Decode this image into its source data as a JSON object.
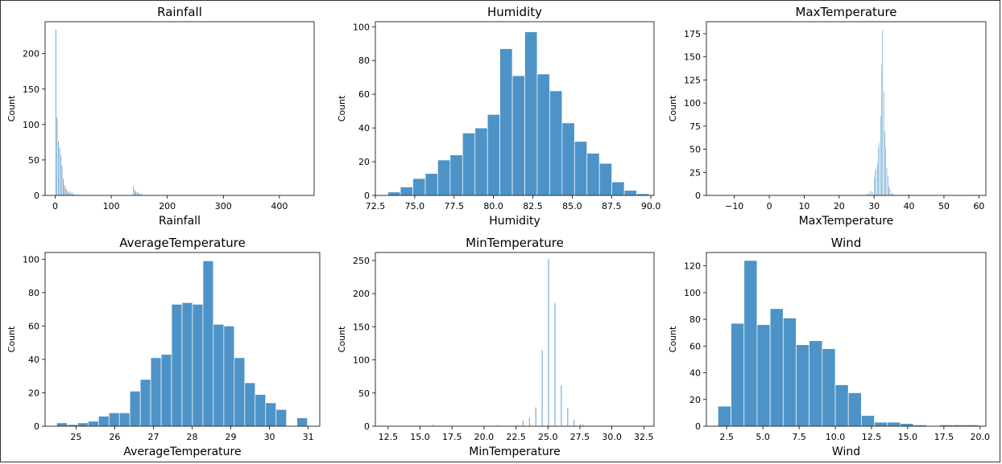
{
  "chart_data": [
    {
      "type": "bar",
      "title": "Rainfall",
      "xlabel": "Rainfall",
      "ylabel": "Count",
      "xlim": [
        -18,
        462
      ],
      "ylim": [
        0,
        245
      ],
      "xticks": [
        0,
        100,
        200,
        300,
        400
      ],
      "yticks": [
        0,
        50,
        100,
        150,
        200
      ],
      "bin_width": 2.2,
      "bins": [
        [
          0,
          234
        ],
        [
          2.2,
          110
        ],
        [
          4.4,
          77
        ],
        [
          6.6,
          68
        ],
        [
          8.8,
          57
        ],
        [
          11,
          42
        ],
        [
          13.2,
          24
        ],
        [
          15.4,
          15
        ],
        [
          17.6,
          11
        ],
        [
          19.8,
          8
        ],
        [
          22,
          4
        ],
        [
          24.2,
          6
        ],
        [
          26.4,
          3
        ],
        [
          28.6,
          5
        ],
        [
          30.8,
          2
        ],
        [
          33,
          2
        ],
        [
          35.2,
          1
        ],
        [
          37.4,
          1
        ],
        [
          39.6,
          2
        ],
        [
          44,
          1
        ],
        [
          48.4,
          1
        ],
        [
          70.4,
          1
        ],
        [
          96.8,
          1
        ],
        [
          101.2,
          1
        ],
        [
          107.8,
          1
        ],
        [
          116.6,
          1
        ],
        [
          132,
          1
        ],
        [
          138.6,
          13
        ],
        [
          140.8,
          8
        ],
        [
          143,
          6
        ],
        [
          145.2,
          5
        ],
        [
          147.4,
          4
        ],
        [
          149.6,
          3
        ],
        [
          151.8,
          2
        ],
        [
          154,
          2
        ],
        [
          158.4,
          1
        ],
        [
          162.8,
          1
        ],
        [
          440,
          1
        ]
      ]
    },
    {
      "type": "bar",
      "title": "Humidity",
      "xlabel": "Humidity",
      "ylabel": "Count",
      "xlim": [
        72.5,
        90.2
      ],
      "ylim": [
        0,
        103
      ],
      "xticks": [
        72.5,
        75.0,
        77.5,
        80.0,
        82.5,
        85.0,
        87.5,
        90.0
      ],
      "yticks": [
        0,
        20,
        40,
        60,
        80,
        100
      ],
      "bin_width": 0.79,
      "bins": [
        [
          73.3,
          2
        ],
        [
          74.09,
          5
        ],
        [
          74.88,
          10
        ],
        [
          75.67,
          13
        ],
        [
          76.46,
          21
        ],
        [
          77.25,
          24
        ],
        [
          78.04,
          37
        ],
        [
          78.83,
          40
        ],
        [
          79.62,
          48
        ],
        [
          80.41,
          87
        ],
        [
          81.2,
          71
        ],
        [
          81.99,
          97
        ],
        [
          82.78,
          72
        ],
        [
          83.57,
          62
        ],
        [
          84.36,
          43
        ],
        [
          85.15,
          32
        ],
        [
          85.94,
          25
        ],
        [
          86.73,
          19
        ],
        [
          87.52,
          8
        ],
        [
          88.31,
          3
        ],
        [
          89.1,
          1
        ]
      ]
    },
    {
      "type": "bar",
      "title": "MaxTemperature",
      "xlabel": "MaxTemperature",
      "ylabel": "Count",
      "xlim": [
        -18,
        62
      ],
      "ylim": [
        0,
        188
      ],
      "xticks": [
        -10,
        0,
        10,
        20,
        30,
        40,
        50,
        60
      ],
      "yticks": [
        0,
        25,
        50,
        75,
        100,
        125,
        150,
        175
      ],
      "bin_width": 0.3,
      "bins": [
        [
          -14.8,
          1
        ],
        [
          27.2,
          1
        ],
        [
          27.8,
          2
        ],
        [
          28.4,
          3
        ],
        [
          28.7,
          5
        ],
        [
          29.3,
          5
        ],
        [
          29.6,
          2
        ],
        [
          29.9,
          20
        ],
        [
          30.2,
          27
        ],
        [
          30.5,
          30
        ],
        [
          30.8,
          35
        ],
        [
          31.1,
          52
        ],
        [
          31.4,
          57
        ],
        [
          31.7,
          86
        ],
        [
          32,
          142
        ],
        [
          32.3,
          179
        ],
        [
          32.6,
          113
        ],
        [
          32.9,
          70
        ],
        [
          33.2,
          52
        ],
        [
          33.5,
          30
        ],
        [
          33.8,
          21
        ],
        [
          34.1,
          10
        ],
        [
          34.4,
          7
        ],
        [
          34.7,
          3
        ],
        [
          35,
          2
        ],
        [
          35.3,
          2
        ],
        [
          36,
          1
        ],
        [
          37.2,
          1
        ],
        [
          38.4,
          1
        ],
        [
          39.6,
          2
        ],
        [
          40.8,
          1
        ],
        [
          44.6,
          1
        ],
        [
          50.3,
          1
        ],
        [
          55.4,
          1
        ],
        [
          56.9,
          1
        ],
        [
          58.1,
          1
        ]
      ]
    },
    {
      "type": "bar",
      "title": "AverageTemperature",
      "xlabel": "AverageTemperature",
      "ylabel": "Count",
      "xlim": [
        24.2,
        31.3
      ],
      "ylim": [
        0,
        104
      ],
      "xticks": [
        25,
        26,
        27,
        28,
        29,
        30,
        31
      ],
      "yticks": [
        0,
        20,
        40,
        60,
        80,
        100
      ],
      "bin_width": 0.27,
      "bins": [
        [
          24.5,
          2
        ],
        [
          24.77,
          1
        ],
        [
          25.04,
          2
        ],
        [
          25.31,
          3
        ],
        [
          25.58,
          6
        ],
        [
          25.85,
          8
        ],
        [
          26.12,
          8
        ],
        [
          26.39,
          21
        ],
        [
          26.66,
          28
        ],
        [
          26.93,
          41
        ],
        [
          27.2,
          43
        ],
        [
          27.47,
          73
        ],
        [
          27.74,
          74
        ],
        [
          28.01,
          73
        ],
        [
          28.28,
          99
        ],
        [
          28.55,
          61
        ],
        [
          28.82,
          60
        ],
        [
          29.09,
          41
        ],
        [
          29.36,
          26
        ],
        [
          29.63,
          19
        ],
        [
          29.9,
          14
        ],
        [
          30.17,
          10
        ],
        [
          30.44,
          0
        ],
        [
          30.71,
          5
        ]
      ]
    },
    {
      "type": "bar",
      "title": "MinTemperature",
      "xlabel": "MinTemperature",
      "ylabel": "Count",
      "xlim": [
        11.5,
        33.3
      ],
      "ylim": [
        0,
        262
      ],
      "xticks": [
        12.5,
        15.0,
        17.5,
        20.0,
        22.5,
        25.0,
        27.5,
        30.0,
        32.5
      ],
      "yticks": [
        0,
        50,
        100,
        150,
        200,
        250
      ],
      "bin_width": 0.1,
      "bins": [
        [
          12.5,
          1
        ],
        [
          15,
          1
        ],
        [
          16,
          3
        ],
        [
          17,
          1
        ],
        [
          18.2,
          1
        ],
        [
          18.9,
          1
        ],
        [
          19.2,
          1
        ],
        [
          19.6,
          1
        ],
        [
          20,
          1
        ],
        [
          20.4,
          1
        ],
        [
          21,
          2
        ],
        [
          22.4,
          1
        ],
        [
          22.6,
          2
        ],
        [
          23,
          9
        ],
        [
          23.5,
          13
        ],
        [
          24,
          29
        ],
        [
          24.5,
          115
        ],
        [
          25,
          253
        ],
        [
          25.5,
          186
        ],
        [
          26,
          62
        ],
        [
          26.5,
          28
        ],
        [
          27,
          10
        ],
        [
          27.5,
          4
        ],
        [
          27.7,
          3
        ],
        [
          28.5,
          1
        ],
        [
          29.5,
          1
        ],
        [
          30.4,
          1
        ],
        [
          32.5,
          1
        ]
      ]
    },
    {
      "type": "bar",
      "title": "Wind",
      "xlabel": "Wind",
      "ylabel": "Count",
      "xlim": [
        1.1,
        20.4
      ],
      "ylim": [
        0,
        130
      ],
      "xticks": [
        2.5,
        5.0,
        7.5,
        10.0,
        12.5,
        15.0,
        17.5,
        20.0
      ],
      "yticks": [
        0,
        20,
        40,
        60,
        80,
        100,
        120
      ],
      "bin_width": 0.9,
      "bins": [
        [
          1.9,
          15
        ],
        [
          2.8,
          77
        ],
        [
          3.7,
          124
        ],
        [
          4.6,
          76
        ],
        [
          5.5,
          88
        ],
        [
          6.4,
          81
        ],
        [
          7.3,
          61
        ],
        [
          8.2,
          64
        ],
        [
          9.1,
          58
        ],
        [
          10,
          31
        ],
        [
          10.9,
          25
        ],
        [
          11.8,
          8
        ],
        [
          12.7,
          3
        ],
        [
          13.6,
          3
        ],
        [
          14.5,
          2
        ],
        [
          15.4,
          1
        ],
        [
          16.3,
          0
        ],
        [
          17.2,
          1
        ],
        [
          18.1,
          1
        ],
        [
          19,
          1
        ]
      ]
    }
  ]
}
